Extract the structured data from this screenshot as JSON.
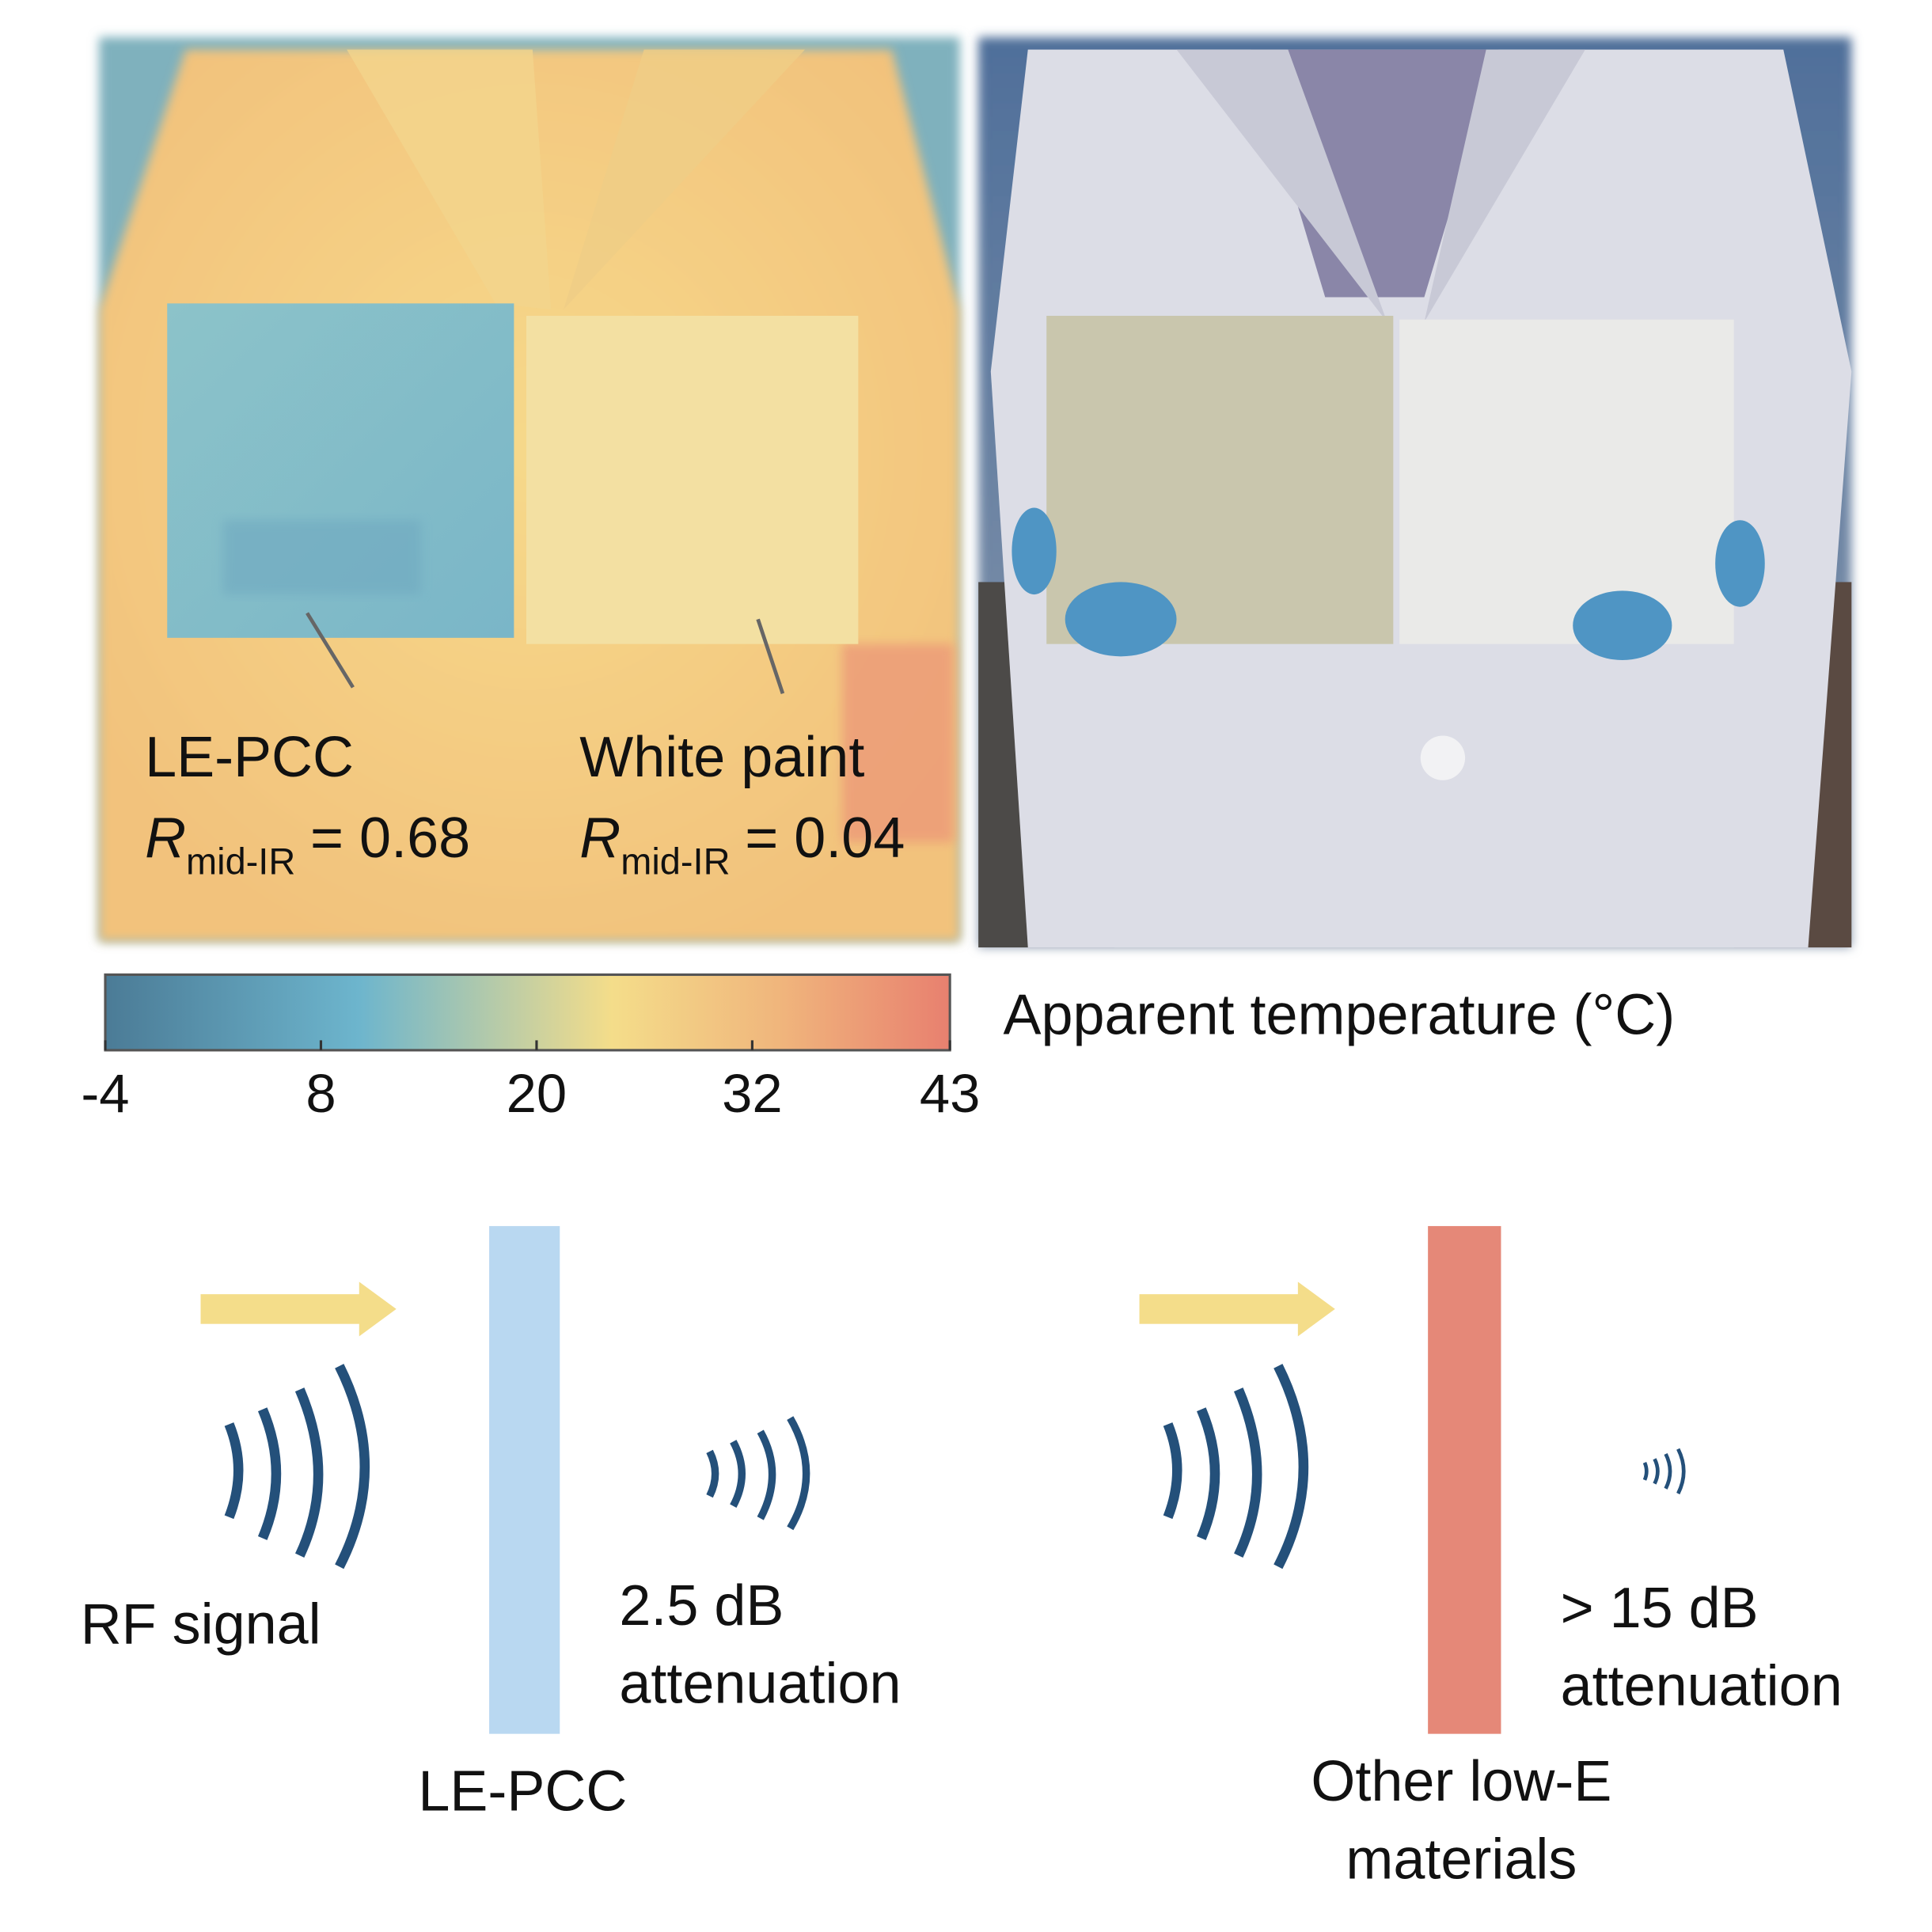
{
  "thermal_image": {
    "left_label": {
      "name": "LE-PCC",
      "symbol": "R",
      "subscript": "mid-IR",
      "value_text": "= 0.68"
    },
    "right_label": {
      "name": "White paint",
      "symbol": "R",
      "subscript": "mid-IR",
      "value_text": "= 0.04"
    }
  },
  "colorbar": {
    "title": "Apparent temperature (°C)",
    "lim": [
      -4,
      43
    ],
    "ticks": [
      -4,
      8,
      20,
      32,
      43
    ]
  },
  "diagram": {
    "source_label": "RF signal",
    "left_panel": {
      "material": "LE-PCC",
      "attenuation_value": "2.5 dB",
      "attenuation_word": "attenuation"
    },
    "right_panel": {
      "material_line1": "Other low-E",
      "material_line2": "materials",
      "attenuation_value": "> 15 dB",
      "attenuation_word": "attenuation"
    }
  }
}
